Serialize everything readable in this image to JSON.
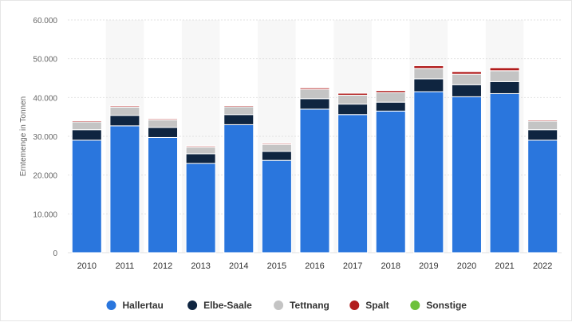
{
  "chart_data": {
    "type": "bar",
    "stacked": true,
    "ylabel": "Erntemenge in Tonnen",
    "xlabel": "",
    "title": "",
    "ylim": [
      0,
      60000
    ],
    "y_ticks": [
      0,
      10000,
      20000,
      30000,
      40000,
      50000,
      60000
    ],
    "y_tick_labels": [
      "0",
      "10.000",
      "20.000",
      "30.000",
      "40.000",
      "50.000",
      "60.000"
    ],
    "grid": true,
    "legend_position": "bottom",
    "categories": [
      "2010",
      "2011",
      "2012",
      "2013",
      "2014",
      "2015",
      "2016",
      "2017",
      "2018",
      "2019",
      "2020",
      "2021",
      "2022"
    ],
    "series": [
      {
        "name": "Hallertau",
        "color": "#2a76dd",
        "values": [
          29000,
          32700,
          29700,
          23000,
          33000,
          23800,
          37000,
          35600,
          36500,
          41500,
          40200,
          41000,
          29000
        ]
      },
      {
        "name": "Elbe-Saale",
        "color": "#0f2540",
        "values": [
          2700,
          2700,
          2600,
          2500,
          2600,
          2300,
          2700,
          2700,
          2300,
          3300,
          3100,
          3100,
          2700
        ]
      },
      {
        "name": "Tettnang",
        "color": "#c4c4c4",
        "values": [
          2000,
          2100,
          1900,
          1700,
          2000,
          1800,
          2400,
          2300,
          2500,
          2700,
          2700,
          2800,
          2200
        ]
      },
      {
        "name": "Spalt",
        "color": "#b11c1c",
        "values": [
          300,
          300,
          300,
          300,
          300,
          300,
          400,
          500,
          500,
          700,
          700,
          800,
          300
        ]
      },
      {
        "name": "Sonstige",
        "color": "#6dc13b",
        "values": [
          50,
          50,
          50,
          50,
          50,
          50,
          50,
          50,
          50,
          50,
          50,
          50,
          50
        ]
      }
    ]
  }
}
